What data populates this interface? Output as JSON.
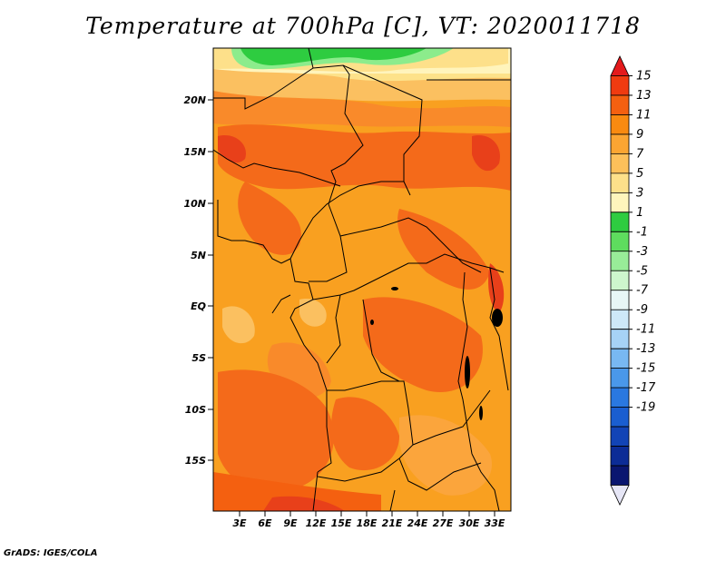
{
  "title": "Temperature at 700hPa [C], VT: 2020011718",
  "credit": "GrADS: IGES/COLA",
  "map": {
    "lat_ticks": [
      "20N",
      "15N",
      "10N",
      "5N",
      "EQ",
      "5S",
      "10S",
      "15S"
    ],
    "lon_ticks": [
      "3E",
      "6E",
      "9E",
      "12E",
      "15E",
      "18E",
      "21E",
      "24E",
      "27E",
      "30E",
      "33E"
    ]
  },
  "colorbar": {
    "labels": [
      "15",
      "13",
      "11",
      "9",
      "7",
      "5",
      "3",
      "1",
      "-1",
      "-3",
      "-5",
      "-7",
      "-9",
      "-11",
      "-13",
      "-15",
      "-17",
      "-19"
    ],
    "colors": [
      "#e41a1c",
      "#f03b10",
      "#f46010",
      "#f98a10",
      "#fba532",
      "#fdc05a",
      "#fde08a",
      "#fef5bc",
      "#2ecc40",
      "#5edc5e",
      "#98ec98",
      "#cdf6cd",
      "#e8f6f6",
      "#cde8f8",
      "#a6d2f6",
      "#78b8f2",
      "#4a98ea",
      "#2a78e0",
      "#1a5ed0",
      "#1244b6",
      "#0c2c96",
      "#0a1670",
      "#e6e6f6"
    ]
  }
}
